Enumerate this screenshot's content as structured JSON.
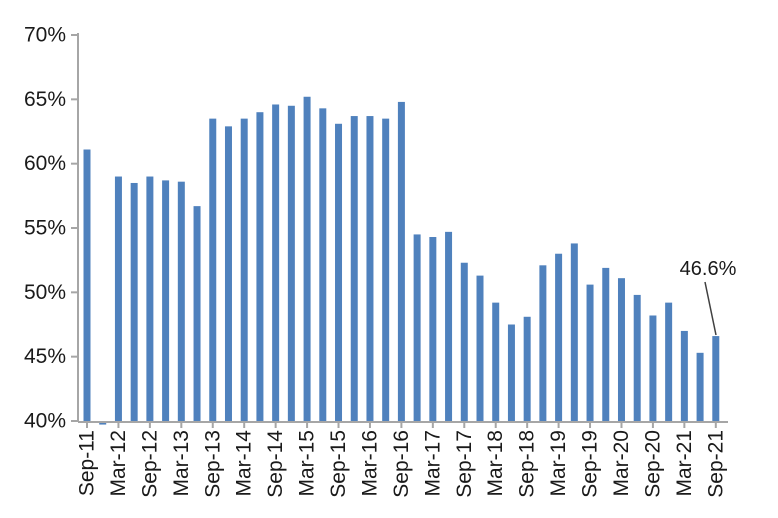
{
  "chart_data": {
    "type": "bar",
    "title": "",
    "xlabel": "",
    "ylabel": "",
    "ylim": [
      40,
      70
    ],
    "y_tick_interval": 5,
    "y_tick_labels_top_to_bottom": [
      "70%",
      "65%",
      "60%",
      "55%",
      "50%",
      "45%",
      "40%"
    ],
    "x_label_every_n_bars": 2,
    "grid": false,
    "legend": null,
    "bar_color": "#4F81BD",
    "axis_color": "#A6A6A6",
    "text_color": "#1A1A1A",
    "annotation": {
      "text": "46.6%",
      "category": "Sep-21",
      "value": 46.6,
      "leader_color": "#404040"
    },
    "categories": [
      "Sep-11",
      "Dec-11",
      "Mar-12",
      "Jun-12",
      "Sep-12",
      "Dec-12",
      "Mar-13",
      "Jun-13",
      "Sep-13",
      "Dec-13",
      "Mar-14",
      "Jun-14",
      "Sep-14",
      "Dec-14",
      "Mar-15",
      "Jun-15",
      "Sep-15",
      "Dec-15",
      "Mar-16",
      "Jun-16",
      "Sep-16",
      "Dec-16",
      "Mar-17",
      "Jun-17",
      "Sep-17",
      "Dec-17",
      "Mar-18",
      "Jun-18",
      "Sep-18",
      "Dec-18",
      "Mar-19",
      "Jun-19",
      "Sep-19",
      "Dec-19",
      "Mar-20",
      "Jun-20",
      "Sep-20",
      "Dec-20",
      "Mar-21",
      "Jun-21",
      "Sep-21"
    ],
    "values": [
      61.1,
      39.8,
      59.0,
      58.5,
      59.0,
      58.7,
      58.6,
      56.7,
      63.5,
      62.9,
      63.5,
      64.0,
      64.6,
      64.5,
      65.2,
      64.3,
      63.1,
      63.7,
      63.7,
      63.5,
      64.8,
      54.5,
      54.3,
      54.7,
      52.3,
      51.3,
      49.2,
      47.5,
      48.1,
      52.1,
      53.0,
      53.8,
      50.6,
      51.9,
      51.1,
      49.8,
      48.2,
      49.2,
      47.0,
      45.3,
      46.6
    ],
    "visible_x_tick_labels": [
      "Sep-11",
      "Mar-12",
      "Sep-12",
      "Mar-13",
      "Sep-13",
      "Mar-14",
      "Sep-14",
      "Mar-15",
      "Sep-15",
      "Mar-16",
      "Sep-16",
      "Mar-17",
      "Sep-17",
      "Mar-18",
      "Sep-18",
      "Mar-19",
      "Sep-19",
      "Mar-20",
      "Sep-20",
      "Mar-21",
      "Sep-21"
    ]
  }
}
